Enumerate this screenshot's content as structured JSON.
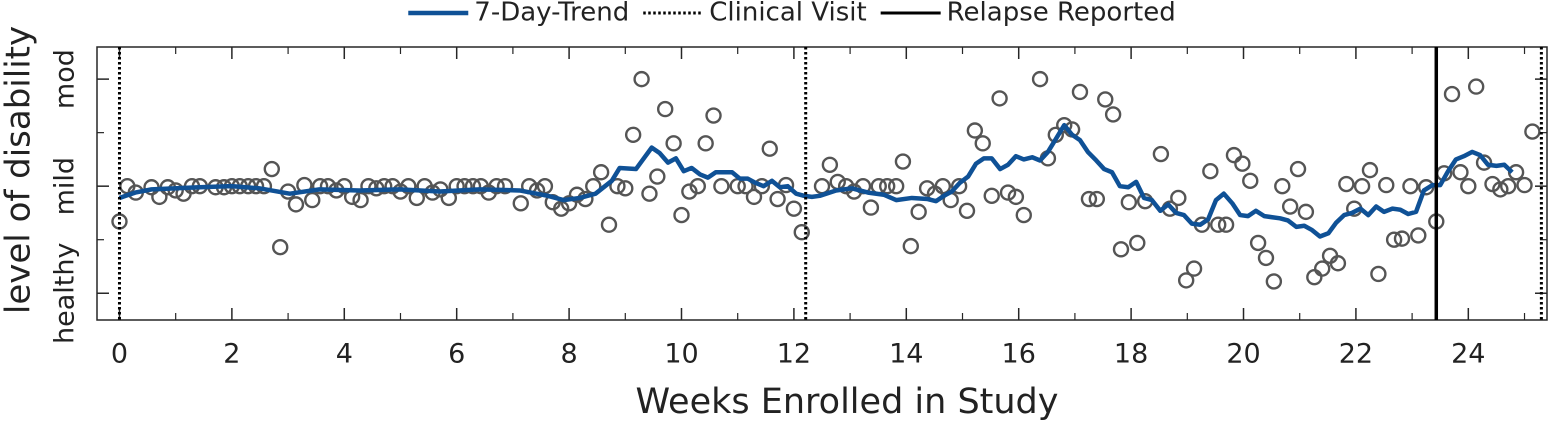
{
  "chart_data": {
    "type": "line",
    "xlabel": "Weeks Enrolled in Study",
    "ylabel": "level of disability",
    "xlim": [
      -0.4,
      25.4
    ],
    "xticks": [
      0,
      2,
      4,
      6,
      8,
      10,
      12,
      14,
      16,
      18,
      20,
      22,
      24
    ],
    "xminorticks": [
      1,
      3,
      5,
      7,
      9,
      11,
      13,
      15,
      17,
      19,
      21,
      23,
      25
    ],
    "ylim": [
      0.75,
      3.3
    ],
    "yticks": [
      {
        "value": 1,
        "label": "healthy"
      },
      {
        "value": 2,
        "label": "mild"
      },
      {
        "value": 3,
        "label": "mod"
      }
    ],
    "yminorticks": [
      1.5,
      2.5
    ],
    "legend": "top",
    "points": {
      "color": "#555555",
      "x": [
        0,
        0.14,
        0.29,
        0.57,
        0.71,
        0.86,
        1,
        1.14,
        1.29,
        1.43,
        1.71,
        1.86,
        2,
        2.14,
        2.29,
        2.43,
        2.57,
        2.71,
        2.86,
        3,
        3.14,
        3.29,
        3.43,
        3.57,
        3.71,
        3.86,
        4,
        4.14,
        4.29,
        4.43,
        4.57,
        4.71,
        4.86,
        5,
        5.14,
        5.29,
        5.43,
        5.57,
        5.71,
        5.86,
        6,
        6.14,
        6.29,
        6.43,
        6.57,
        6.71,
        6.86,
        7.14,
        7.29,
        7.43,
        7.57,
        7.71,
        7.86,
        8,
        8.14,
        8.29,
        8.43,
        8.57,
        8.71,
        8.86,
        9,
        9.14,
        9.29,
        9.43,
        9.57,
        9.71,
        9.86,
        10,
        10.14,
        10.29,
        10.43,
        10.57,
        10.71,
        11,
        11.14,
        11.29,
        11.43,
        11.57,
        11.71,
        11.86,
        12,
        12.14,
        12.5,
        12.64,
        12.78,
        12.93,
        13.07,
        13.23,
        13.37,
        13.51,
        13.66,
        13.82,
        13.94,
        14.08,
        14.22,
        14.37,
        14.51,
        14.65,
        14.79,
        14.94,
        15.08,
        15.22,
        15.36,
        15.52,
        15.66,
        15.81,
        15.95,
        16.09,
        16.38,
        16.52,
        16.66,
        16.81,
        16.95,
        17.09,
        17.25,
        17.39,
        17.54,
        17.68,
        17.82,
        17.96,
        18.11,
        18.25,
        18.53,
        18.69,
        18.84,
        18.98,
        19.12,
        19.26,
        19.41,
        19.55,
        19.69,
        19.83,
        19.98,
        20.12,
        20.26,
        20.4,
        20.54,
        20.69,
        20.83,
        20.97,
        21.11,
        21.26,
        21.4,
        21.54,
        21.68,
        21.83,
        21.97,
        22.11,
        22.25,
        22.4,
        22.54,
        22.68,
        22.82,
        22.97,
        23.11,
        23.25,
        23.43,
        23.57,
        23.71,
        23.86,
        24,
        24.14,
        24.28,
        24.43,
        24.57,
        24.71,
        24.85,
        25,
        25.14
      ],
      "y": [
        1.67,
        2,
        1.94,
        1.99,
        1.9,
        1.99,
        1.96,
        1.93,
        2,
        2,
        1.99,
        1.99,
        2,
        2,
        2,
        2,
        2,
        2.16,
        1.43,
        1.95,
        1.83,
        2.01,
        1.87,
        2,
        2,
        1.96,
        2,
        1.9,
        1.87,
        2,
        1.98,
        2,
        2,
        1.95,
        2,
        1.89,
        2,
        1.94,
        1.97,
        1.89,
        2,
        2,
        2,
        2,
        1.94,
        2,
        2,
        1.84,
        2,
        1.96,
        2,
        1.85,
        1.79,
        1.84,
        1.92,
        1.88,
        2,
        2.13,
        1.64,
        2,
        1.98,
        2.48,
        3,
        1.93,
        2.09,
        2.72,
        2.4,
        1.73,
        1.95,
        2,
        2.4,
        2.66,
        2,
        2,
        2,
        1.9,
        2,
        2.35,
        1.88,
        2.01,
        1.79,
        1.57,
        2,
        2.2,
        2.04,
        2,
        1.95,
        2,
        1.8,
        2,
        2,
        2,
        2.23,
        1.44,
        1.76,
        1.98,
        1.93,
        2,
        1.87,
        2,
        1.77,
        2.52,
        2.4,
        1.91,
        2.82,
        1.94,
        1.9,
        1.73,
        3,
        2.26,
        2.48,
        2.57,
        2.53,
        2.88,
        1.88,
        1.88,
        2.81,
        2.67,
        1.41,
        1.85,
        1.47,
        1.86,
        2.3,
        1.79,
        1.89,
        1.12,
        1.23,
        1.64,
        2.14,
        1.64,
        1.64,
        2.29,
        2.21,
        2.05,
        1.47,
        1.33,
        1.11,
        2,
        1.81,
        2.16,
        1.76,
        1.15,
        1.23,
        1.35,
        1.28,
        2.02,
        1.79,
        2,
        2.15,
        1.18,
        2.01,
        1.5,
        1.51,
        2,
        1.54,
        1.99,
        1.67,
        2.12,
        2.86,
        2.13,
        2,
        2.93,
        2.22,
        2.02,
        1.97,
        2,
        2.13,
        2.01,
        2.51
      ]
    },
    "series": [
      {
        "name": "7-Day-Trend",
        "color": "#0f5196",
        "x": [
          0,
          0.28,
          0.57,
          1.42,
          1.99,
          2.49,
          3.03,
          3.56,
          4.27,
          4.98,
          5.7,
          6.41,
          7.12,
          7.62,
          7.9,
          8.19,
          8.47,
          8.76,
          8.9,
          9.19,
          9.33,
          9.47,
          9.61,
          9.76,
          9.9,
          10.04,
          10.18,
          10.33,
          10.47,
          10.61,
          10.75,
          10.9,
          11.04,
          11.18,
          11.32,
          11.46,
          11.61,
          11.75,
          11.89,
          12.04,
          12.18,
          12.32,
          12.46,
          12.75,
          13.03,
          13.32,
          13.6,
          13.82,
          14.1,
          14.38,
          14.53,
          14.67,
          14.81,
          14.95,
          15.1,
          15.24,
          15.38,
          15.52,
          15.67,
          15.81,
          15.95,
          16.09,
          16.24,
          16.38,
          16.52,
          16.66,
          16.81,
          16.95,
          17.09,
          17.23,
          17.38,
          17.52,
          17.66,
          17.8,
          17.95,
          18.09,
          18.23,
          18.37,
          18.52,
          18.66,
          18.8,
          18.94,
          19.08,
          19.23,
          19.37,
          19.51,
          19.65,
          19.8,
          19.94,
          20.08,
          20.22,
          20.37,
          20.51,
          20.65,
          20.79,
          20.94,
          21.08,
          21.22,
          21.36,
          21.51,
          21.65,
          21.79,
          21.93,
          22.08,
          22.22,
          22.36,
          22.5,
          22.65,
          22.79,
          22.93,
          23.07,
          23.21,
          23.36,
          23.5,
          23.64,
          23.78,
          23.92,
          24.07,
          24.21,
          24.35,
          24.5,
          24.64,
          24.78
        ],
        "values": [
          1.89,
          1.94,
          1.97,
          1.99,
          2,
          1.98,
          1.93,
          1.97,
          1.96,
          1.97,
          1.95,
          1.97,
          1.96,
          1.91,
          1.87,
          1.89,
          1.93,
          2.05,
          2.17,
          2.16,
          2.26,
          2.36,
          2.31,
          2.22,
          2.26,
          2.14,
          2.17,
          2.11,
          2.08,
          2.13,
          2.13,
          2.13,
          2.07,
          2.07,
          2.03,
          2,
          2.05,
          1.99,
          2,
          1.93,
          1.91,
          1.9,
          1.91,
          1.96,
          1.98,
          1.94,
          1.92,
          1.87,
          1.89,
          1.88,
          1.86,
          1.91,
          1.95,
          2.03,
          2.09,
          2.21,
          2.26,
          2.26,
          2.16,
          2.2,
          2.28,
          2.25,
          2.27,
          2.24,
          2.32,
          2.44,
          2.57,
          2.48,
          2.43,
          2.32,
          2.24,
          2.16,
          2.13,
          2,
          1.99,
          2.04,
          1.89,
          1.87,
          1.77,
          1.83,
          1.75,
          1.73,
          1.65,
          1.64,
          1.69,
          1.87,
          1.93,
          1.84,
          1.73,
          1.72,
          1.77,
          1.72,
          1.71,
          1.7,
          1.68,
          1.62,
          1.63,
          1.59,
          1.53,
          1.56,
          1.66,
          1.73,
          1.75,
          1.79,
          1.73,
          1.81,
          1.76,
          1.79,
          1.78,
          1.74,
          1.76,
          1.96,
          2.01,
          2.01,
          2.14,
          2.25,
          2.28,
          2.32,
          2.29,
          2.2,
          2.19,
          2.2,
          2.13
        ]
      }
    ],
    "vlines": [
      {
        "name": "Clinical Visit",
        "color": "#000000",
        "style": "dotted",
        "x": [
          0,
          12.21,
          25.3
        ]
      },
      {
        "name": "Relapse Reported",
        "color": "#000000",
        "style": "solid",
        "x": [
          23.43
        ]
      }
    ]
  }
}
